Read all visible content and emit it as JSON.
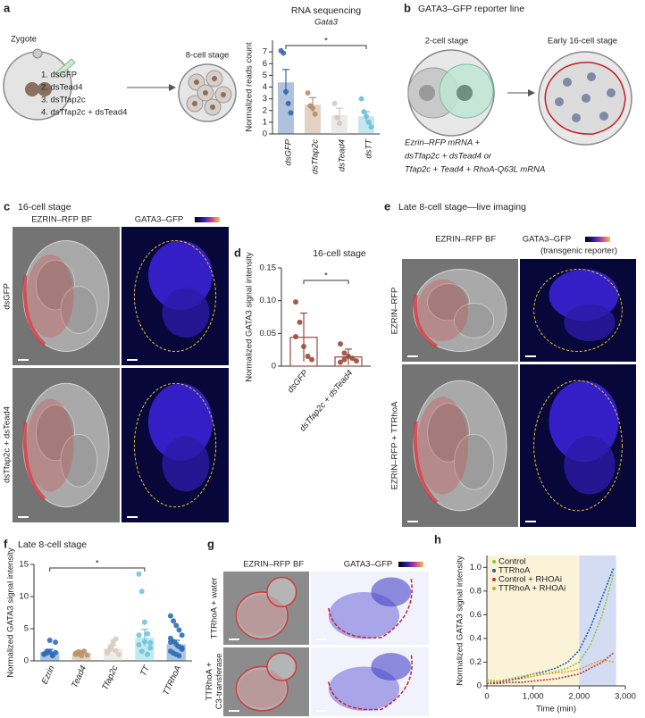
{
  "panels": {
    "a": {
      "label": "a",
      "zygote": "Zygote",
      "treatments": [
        "1. dsGFP",
        "2. dsTead4",
        "3. dsTfap2c",
        "4. dsTfap2c + dsTead4"
      ],
      "stage": "8-cell stage"
    },
    "b": {
      "label": "b",
      "title": "GATA3–GFP reporter line",
      "stage1": "2-cell stage",
      "stage2": "Early 16-cell stage",
      "injection": [
        "Ezrin–RFP mRNA +",
        "dsTfap2c + dsTead4 or",
        "Tfap2c + Tead4 + RhoA-Q63L mRNA"
      ]
    },
    "c": {
      "label": "c",
      "title": "16-cell stage",
      "channel1": "EZRIN–RFP",
      "channel1b": "BF",
      "channel2": "GATA3–GFP",
      "rows": [
        [
          "dsGFP"
        ],
        [
          "dsTfap2c + dsTead4"
        ]
      ]
    },
    "e": {
      "label": "e",
      "title": "Late 8-cell stage—live imaging",
      "channel1": "EZRIN–RFP",
      "channel1b": "BF",
      "channel2": "GATA3–GFP",
      "channel2b": "(transgenic reporter)",
      "rows": [
        [
          "EZRIN–RFP"
        ],
        [
          "EZRIN–RFP + TTRhoA"
        ]
      ]
    },
    "g": {
      "label": "g",
      "channel1": "EZRIN–RFP",
      "channel1b": "BF",
      "channel2": "GATA3–GFP",
      "rows": [
        [
          "TTRhoA + water"
        ],
        [
          "TTRhoA +",
          "C3-transferase"
        ]
      ]
    }
  },
  "chart_data": [
    {
      "type": "bar",
      "title": "RNA sequencing",
      "subtitle": "Gata3",
      "y_label": "Normalized reads count",
      "categories": [
        "dsGFP",
        "dsTfap2c",
        "dsTead4",
        "dsTT"
      ],
      "values": [
        4.4,
        2.5,
        1.6,
        1.5
      ],
      "errors": [
        1.1,
        0.6,
        0.6,
        0.4
      ],
      "points": [
        [
          7.1,
          6.9,
          3.6,
          2.6,
          1.8
        ],
        [
          3.5,
          2.4,
          2.2,
          1.7
        ],
        [
          2.6,
          1.4,
          0.9
        ],
        [
          3.0,
          1.9,
          1.5,
          1.0,
          0.6
        ]
      ],
      "colors": [
        "#3566a8",
        "#b48f68",
        "#cfc9c0",
        "#6cc0d4"
      ],
      "bar_fill": true,
      "ylim": [
        0,
        8
      ],
      "yticks": [
        0,
        1,
        2,
        3,
        4,
        5,
        6,
        7
      ],
      "annotation": "*"
    },
    {
      "type": "bar",
      "panel_label": "d",
      "title": "16-cell stage",
      "y_label": "Normalized GATA3 signal intensity",
      "categories": [
        "dsGFP",
        "dsTfap2c + dsTead4"
      ],
      "values": [
        0.044,
        0.014
      ],
      "errors": [
        0.037,
        0.012
      ],
      "points": [
        [
          0.098,
          0.067,
          0.03,
          0.015,
          0.01,
          0.045
        ],
        [
          0.034,
          0.02,
          0.015,
          0.012,
          0.008,
          0.006,
          0.01
        ]
      ],
      "colors": [
        "#9a4a3c",
        "#9a4a3c"
      ],
      "bar_fill": false,
      "ylim": [
        0,
        0.15
      ],
      "yticks": [
        0,
        0.05,
        {
          "value": 0.1,
          "label": "0.10"
        },
        0.15
      ],
      "annotation": "*"
    },
    {
      "type": "bar",
      "panel_label": "f",
      "title": "Late 8-cell stage",
      "y_label": "Normalized GATA3 signal intensity",
      "categories": [
        "Ezrin",
        "Tead4",
        "Tfap2c",
        "TT",
        "TTRhoA"
      ],
      "values": [
        1.4,
        1.2,
        1.9,
        3.6,
        2.6
      ],
      "errors": [
        0.4,
        0.2,
        0.5,
        1.3,
        0.6
      ],
      "points": [
        [
          1.0,
          1.2,
          1.4,
          0.8,
          2.9,
          1.1,
          1.5,
          3.2,
          0.9,
          1.3
        ],
        [
          1.0,
          1.1,
          1.3,
          1.5,
          0.9,
          1.2,
          1.4,
          0.8
        ],
        [
          1.2,
          1.8,
          2.6,
          3.4,
          1.0,
          1.5,
          2.2,
          3.0,
          1.6
        ],
        [
          13.5,
          10.8,
          6.0,
          4.2,
          2.0,
          2.5,
          1.5,
          3.0,
          1.0,
          2.8,
          4.0
        ],
        [
          7.0,
          6.2,
          5.5,
          4.8,
          4.0,
          3.5,
          3.0,
          2.6,
          2.2,
          1.8,
          1.5,
          1.2,
          1.0,
          0.8,
          2.0,
          2.9
        ]
      ],
      "colors": [
        "#2f6db3",
        "#b8956a",
        "#d8cdbf",
        "#6ec6dc",
        "#2f6db3"
      ],
      "bar_fill": true,
      "ylim": [
        0,
        15
      ],
      "yticks": [
        0,
        5,
        10,
        15
      ],
      "annotation": "*"
    },
    {
      "type": "line",
      "panel_label": "h",
      "y_label": "Normalized GATA3 signal intensity",
      "x_label": "Time (min)",
      "x": [
        0,
        250,
        500,
        750,
        1000,
        1250,
        1500,
        1750,
        2000,
        2250,
        2500,
        2750
      ],
      "series": [
        {
          "name": "Control",
          "color": "#8cc63f",
          "values": [
            0.05,
            0.04,
            0.05,
            0.06,
            0.08,
            0.1,
            0.12,
            0.15,
            0.2,
            0.35,
            0.6,
            0.95
          ]
        },
        {
          "name": "TTRhoA",
          "color": "#1f5fa8",
          "values": [
            0.02,
            0.03,
            0.05,
            0.07,
            0.1,
            0.12,
            0.15,
            0.2,
            0.3,
            0.5,
            0.75,
            1.0
          ]
        },
        {
          "name": "Control + RHOAi",
          "color": "#c0392b",
          "values": [
            0.02,
            0.02,
            0.03,
            0.03,
            0.04,
            0.05,
            0.06,
            0.08,
            0.1,
            0.15,
            0.2,
            0.28
          ]
        },
        {
          "name": "TTRhoA + RHOAi",
          "color": "#e0a030",
          "values": [
            0.03,
            0.04,
            0.06,
            0.08,
            0.1,
            0.1,
            0.11,
            0.12,
            0.14,
            0.18,
            0.22,
            0.2
          ]
        }
      ],
      "spans": [
        {
          "x": [
            0,
            2000
          ],
          "color": "#fbf3d8"
        },
        {
          "x": [
            2000,
            2800
          ],
          "color": "#d3dcf2"
        }
      ],
      "xlim": [
        0,
        3000
      ],
      "xticks": [
        0,
        {
          "value": 1000,
          "label": "1,000"
        },
        {
          "value": 2000,
          "label": "2,000"
        },
        {
          "value": 3000,
          "label": "3,000"
        }
      ],
      "ylim": [
        0,
        1.1
      ],
      "yticks": [
        0,
        0.2,
        0.4,
        0.6,
        0.8,
        {
          "value": 1,
          "label": "1.0"
        }
      ]
    }
  ]
}
